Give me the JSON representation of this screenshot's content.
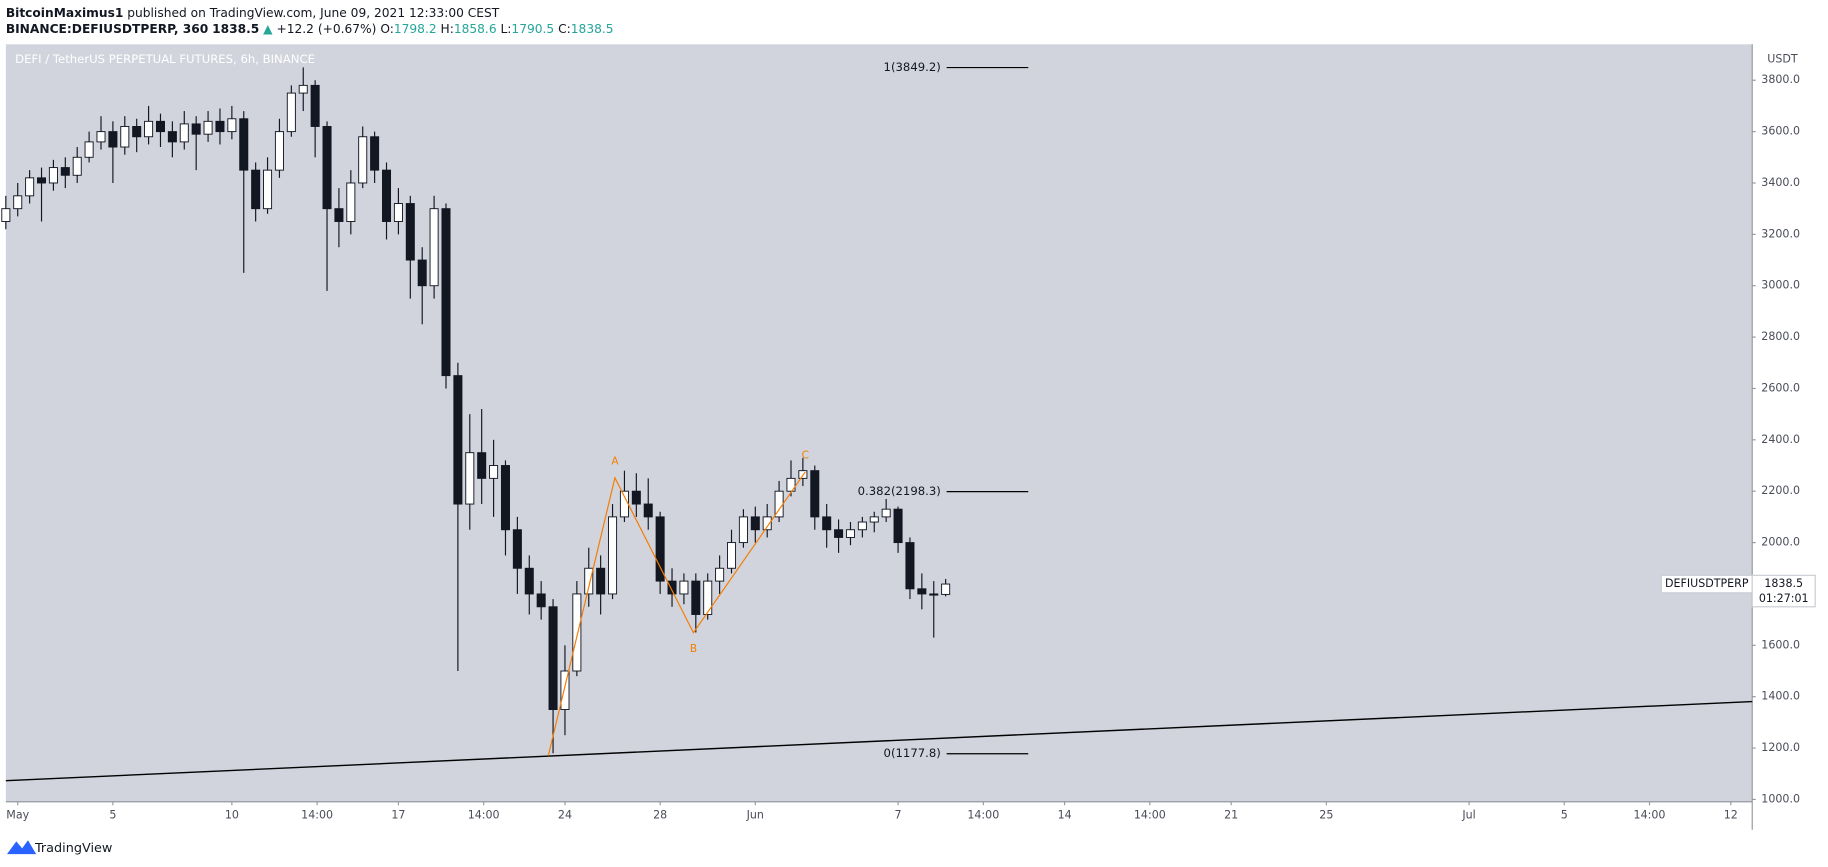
{
  "header": {
    "author": "BitcoinMaximus1",
    "published": "published on TradingView.com, June 09, 2021 12:33:00 CEST",
    "symbol": "BINANCE:DEFIUSDTPERP, 360",
    "last": "1838.5",
    "arrow": "▲",
    "change": "+12.2 (+0.67%)",
    "ohlc": [
      {
        "key": "O:",
        "value": "1798.2"
      },
      {
        "key": "H:",
        "value": "1858.6"
      },
      {
        "key": "L:",
        "value": "1790.5"
      },
      {
        "key": "C:",
        "value": "1838.5"
      }
    ]
  },
  "chart_data": {
    "type": "candlestick",
    "title": "DEFI / TetherUS PERPETUAL FUTURES, 6h, BINANCE",
    "y_axis_label": "USDT",
    "x": [
      -0.5,
      0,
      0.5,
      1,
      1.5,
      2,
      2.5,
      3,
      3.5,
      4,
      4.5,
      5,
      5.5,
      6,
      6.5,
      7,
      7.5,
      8,
      8.5,
      9,
      9.5,
      10,
      10.5,
      11,
      11.5,
      12,
      12.5,
      13,
      13.5,
      14,
      14.5,
      15,
      15.5,
      16,
      16.5,
      17,
      17.5,
      18,
      18.5,
      19,
      19.5,
      20,
      20.5,
      21,
      21.5,
      22,
      22.5,
      23,
      23.5,
      24,
      24.5,
      25,
      25.5,
      26,
      26.5,
      27,
      27.5,
      28,
      28.5,
      29,
      29.5,
      30,
      30.5,
      31,
      31.5,
      32,
      32.5,
      33,
      33.5,
      34,
      34.5,
      35,
      35.5,
      36,
      36.5,
      37,
      37.5,
      38,
      38.5,
      39
    ],
    "open": [
      3250,
      3300,
      3350,
      3420,
      3400,
      3460,
      3430,
      3500,
      3560,
      3600,
      3540,
      3620,
      3580,
      3640,
      3600,
      3560,
      3630,
      3590,
      3640,
      3600,
      3650,
      3450,
      3300,
      3450,
      3600,
      3750,
      3780,
      3620,
      3300,
      3250,
      3400,
      3580,
      3450,
      3250,
      3320,
      3100,
      3000,
      3300,
      2650,
      2150,
      2350,
      2250,
      2300,
      2050,
      1900,
      1800,
      1750,
      1350,
      1500,
      1800,
      1900,
      1800,
      2100,
      2200,
      2150,
      2100,
      1850,
      1800,
      1850,
      1720,
      1850,
      1900,
      2000,
      2100,
      2050,
      2100,
      2200,
      2250,
      2280,
      2100,
      2050,
      2020,
      2050,
      2080,
      2100,
      2130,
      2000,
      1820,
      1800,
      1798.2
    ],
    "high": [
      3350,
      3400,
      3450,
      3460,
      3490,
      3500,
      3540,
      3600,
      3660,
      3640,
      3660,
      3650,
      3700,
      3670,
      3640,
      3680,
      3660,
      3680,
      3690,
      3700,
      3680,
      3480,
      3500,
      3650,
      3780,
      3850,
      3800,
      3640,
      3380,
      3450,
      3620,
      3600,
      3480,
      3380,
      3350,
      3150,
      3350,
      3320,
      2700,
      2500,
      2520,
      2400,
      2320,
      2100,
      1950,
      1850,
      1780,
      1600,
      1850,
      1980,
      1950,
      2150,
      2280,
      2270,
      2250,
      2120,
      1900,
      1880,
      1880,
      1880,
      1950,
      2050,
      2130,
      2140,
      2150,
      2240,
      2320,
      2330,
      2300,
      2150,
      2090,
      2080,
      2100,
      2120,
      2170,
      2140,
      2020,
      1880,
      1850,
      1858.6
    ],
    "low": [
      3220,
      3270,
      3320,
      3250,
      3370,
      3380,
      3400,
      3480,
      3530,
      3400,
      3510,
      3520,
      3550,
      3540,
      3500,
      3530,
      3450,
      3560,
      3550,
      3570,
      3050,
      3250,
      3280,
      3420,
      3580,
      3680,
      3500,
      2980,
      3150,
      3200,
      3380,
      3400,
      3180,
      3200,
      2950,
      2850,
      2950,
      2600,
      1500,
      2050,
      2150,
      2100,
      1950,
      1800,
      1720,
      1700,
      1180,
      1250,
      1480,
      1750,
      1720,
      1780,
      2080,
      2100,
      2050,
      1800,
      1750,
      1760,
      1650,
      1700,
      1800,
      1880,
      1980,
      2000,
      2020,
      2080,
      2180,
      2220,
      2050,
      1980,
      1960,
      1990,
      2020,
      2040,
      2080,
      1960,
      1780,
      1740,
      1630,
      1790.5
    ],
    "close": [
      3300,
      3350,
      3420,
      3400,
      3460,
      3430,
      3500,
      3560,
      3600,
      3540,
      3620,
      3580,
      3640,
      3600,
      3560,
      3630,
      3590,
      3640,
      3600,
      3650,
      3450,
      3300,
      3450,
      3600,
      3750,
      3780,
      3620,
      3300,
      3250,
      3400,
      3580,
      3450,
      3250,
      3320,
      3100,
      3000,
      3300,
      2650,
      2150,
      2350,
      2250,
      2300,
      2050,
      1900,
      1800,
      1750,
      1350,
      1500,
      1800,
      1900,
      1800,
      2100,
      2200,
      2150,
      2100,
      1850,
      1800,
      1850,
      1720,
      1850,
      1900,
      2000,
      2100,
      2050,
      2100,
      2200,
      2250,
      2280,
      2100,
      2050,
      2020,
      2050,
      2080,
      2100,
      2130,
      2000,
      1820,
      1800,
      1798.2,
      1838.5
    ],
    "up_color": "#ffffff",
    "down_color": "#131722",
    "background": "#d1d4dc",
    "xlim": [
      -0.5,
      72.9
    ],
    "xticks": [
      {
        "value": 0,
        "label": "May"
      },
      {
        "value": 4,
        "label": "5"
      },
      {
        "value": 9,
        "label": "10"
      },
      {
        "value": 12.583,
        "label": "14:00"
      },
      {
        "value": 16,
        "label": "17"
      },
      {
        "value": 19.583,
        "label": "14:00"
      },
      {
        "value": 23,
        "label": "24"
      },
      {
        "value": 27,
        "label": "28"
      },
      {
        "value": 31,
        "label": "Jun"
      },
      {
        "value": 37,
        "label": "7"
      },
      {
        "value": 40.583,
        "label": "14:00"
      },
      {
        "value": 44,
        "label": "14"
      },
      {
        "value": 47.583,
        "label": "14:00"
      },
      {
        "value": 51,
        "label": "21"
      },
      {
        "value": 55,
        "label": "25"
      },
      {
        "value": 61,
        "label": "Jul"
      },
      {
        "value": 65,
        "label": "5"
      },
      {
        "value": 68.583,
        "label": "14:00"
      },
      {
        "value": 72,
        "label": "12"
      }
    ],
    "ylim": [
      991,
      3940
    ],
    "yticks": [
      {
        "value": 1000,
        "label": "1000.0"
      },
      {
        "value": 1200,
        "label": "1200.0"
      },
      {
        "value": 1400,
        "label": "1400.0"
      },
      {
        "value": 1600,
        "label": "1600.0"
      },
      {
        "value": 1800,
        "label": "1800.0"
      },
      {
        "value": 2000,
        "label": "2000.0"
      },
      {
        "value": 2200,
        "label": "2200.0"
      },
      {
        "value": 2400,
        "label": "2400.0"
      },
      {
        "value": 2600,
        "label": "2600.0"
      },
      {
        "value": 2800,
        "label": "2800.0"
      },
      {
        "value": 3000,
        "label": "3000.0"
      },
      {
        "value": 3200,
        "label": "3200.0"
      },
      {
        "value": 3400,
        "label": "3400.0"
      },
      {
        "value": 3600,
        "label": "3600.0"
      },
      {
        "value": 3800,
        "label": "3800.0"
      }
    ],
    "fib_levels": [
      {
        "value": 3849.2,
        "label": "1(3849.2)"
      },
      {
        "value": 2198.3,
        "label": "0.382(2198.3)"
      },
      {
        "value": 1177.8,
        "label": "0(1177.8)"
      }
    ],
    "trendline": {
      "x": [
        -0.5,
        72.9
      ],
      "y": [
        1073,
        1381
      ],
      "color": "#000000"
    },
    "waves": {
      "x": [
        22.3,
        25.1,
        28.4,
        33.1
      ],
      "y": [
        1170,
        2252,
        1649,
        2275
      ],
      "color": "#f57c00"
    },
    "wave_labels": [
      "A",
      "B",
      "C"
    ],
    "price_tag": {
      "symbol": "DEFIUSDTPERP",
      "price": "1838.5",
      "countdown": "01:27:01"
    }
  },
  "footer": {
    "brand": "TradingView"
  }
}
